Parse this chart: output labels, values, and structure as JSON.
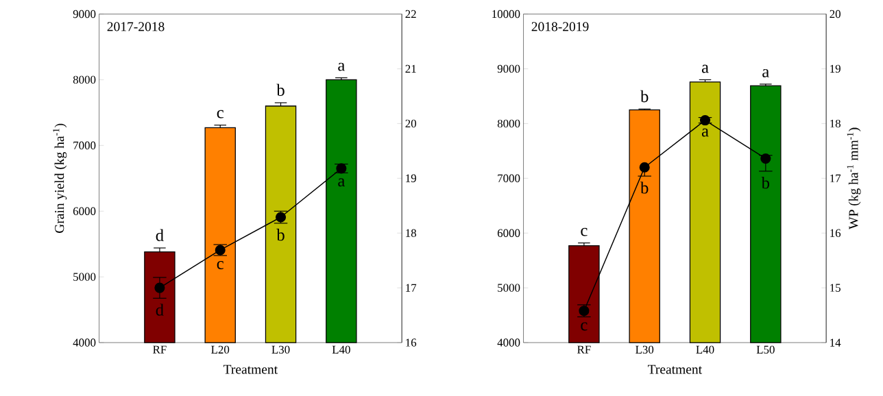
{
  "chart_data": [
    {
      "type": "bar",
      "title": "2017-2018",
      "xlabel": "Treatment",
      "ylabel": "Grain yield (kg ha$^{-1}$)",
      "categories": [
        "RF",
        "L20",
        "L30",
        "L40"
      ],
      "series": [
        {
          "colors": [
            "#800000",
            "#ff8000",
            "#c0c000",
            "#008000"
          ],
          "values": [
            5380,
            7270,
            7600,
            8000
          ],
          "errors": [
            [
              5380,
              5440
            ],
            [
              7270,
              7310
            ],
            [
              7600,
              7650
            ],
            [
              8000,
              8030
            ]
          ]
        },
        {
          "type": "line",
          "axis": "y2",
          "color": "#000000",
          "marker": "circle",
          "values": [
            17.0,
            17.69,
            18.29,
            19.18
          ],
          "errors": [
            0.19,
            0.1,
            0.11,
            0.08
          ]
        }
      ],
      "ylim": [
        4000,
        9000
      ],
      "yticks": [
        4000,
        5000,
        6000,
        7000,
        8000,
        9000
      ],
      "y2lim": [
        16,
        22
      ],
      "y2ticks": [
        16,
        17,
        18,
        19,
        20,
        21,
        22
      ],
      "annotations": [
        "d",
        "c",
        "b",
        "a",
        "d",
        "c",
        "b",
        "a"
      ]
    },
    {
      "type": "bar",
      "title": "2018-2019",
      "xlabel": "Treatment",
      "y2label": "WP (kg ha$^{-1}$ mm$^{-1}$)",
      "categories": [
        "RF",
        "L30",
        "L40",
        "L50"
      ],
      "series": [
        {
          "colors": [
            "#800000",
            "#ff8000",
            "#c0c000",
            "#008000"
          ],
          "values": [
            5770,
            8250,
            8760,
            8690
          ],
          "errors": [
            [
              5770,
              5820
            ],
            [
              8250,
              8265
            ],
            [
              8760,
              8800
            ],
            [
              8690,
              8720
            ]
          ]
        },
        {
          "type": "line",
          "axis": "y2",
          "color": "#000000",
          "marker": "circle",
          "values": [
            14.58,
            17.2,
            18.06,
            17.36
          ],
          "errors": [
            0.11,
            [
              17.04,
              17.2
            ],
            0.05,
            [
              17.13,
              17.42
            ]
          ]
        }
      ],
      "ylim": [
        4000,
        10000
      ],
      "yticks": [
        4000,
        5000,
        6000,
        7000,
        8000,
        9000,
        10000
      ],
      "y2lim": [
        14,
        20
      ],
      "y2ticks": [
        14,
        15,
        16,
        17,
        18,
        19,
        20
      ],
      "annotations": [
        "c",
        "b",
        "a",
        "a",
        "c",
        "b",
        "a",
        "b"
      ]
    }
  ]
}
